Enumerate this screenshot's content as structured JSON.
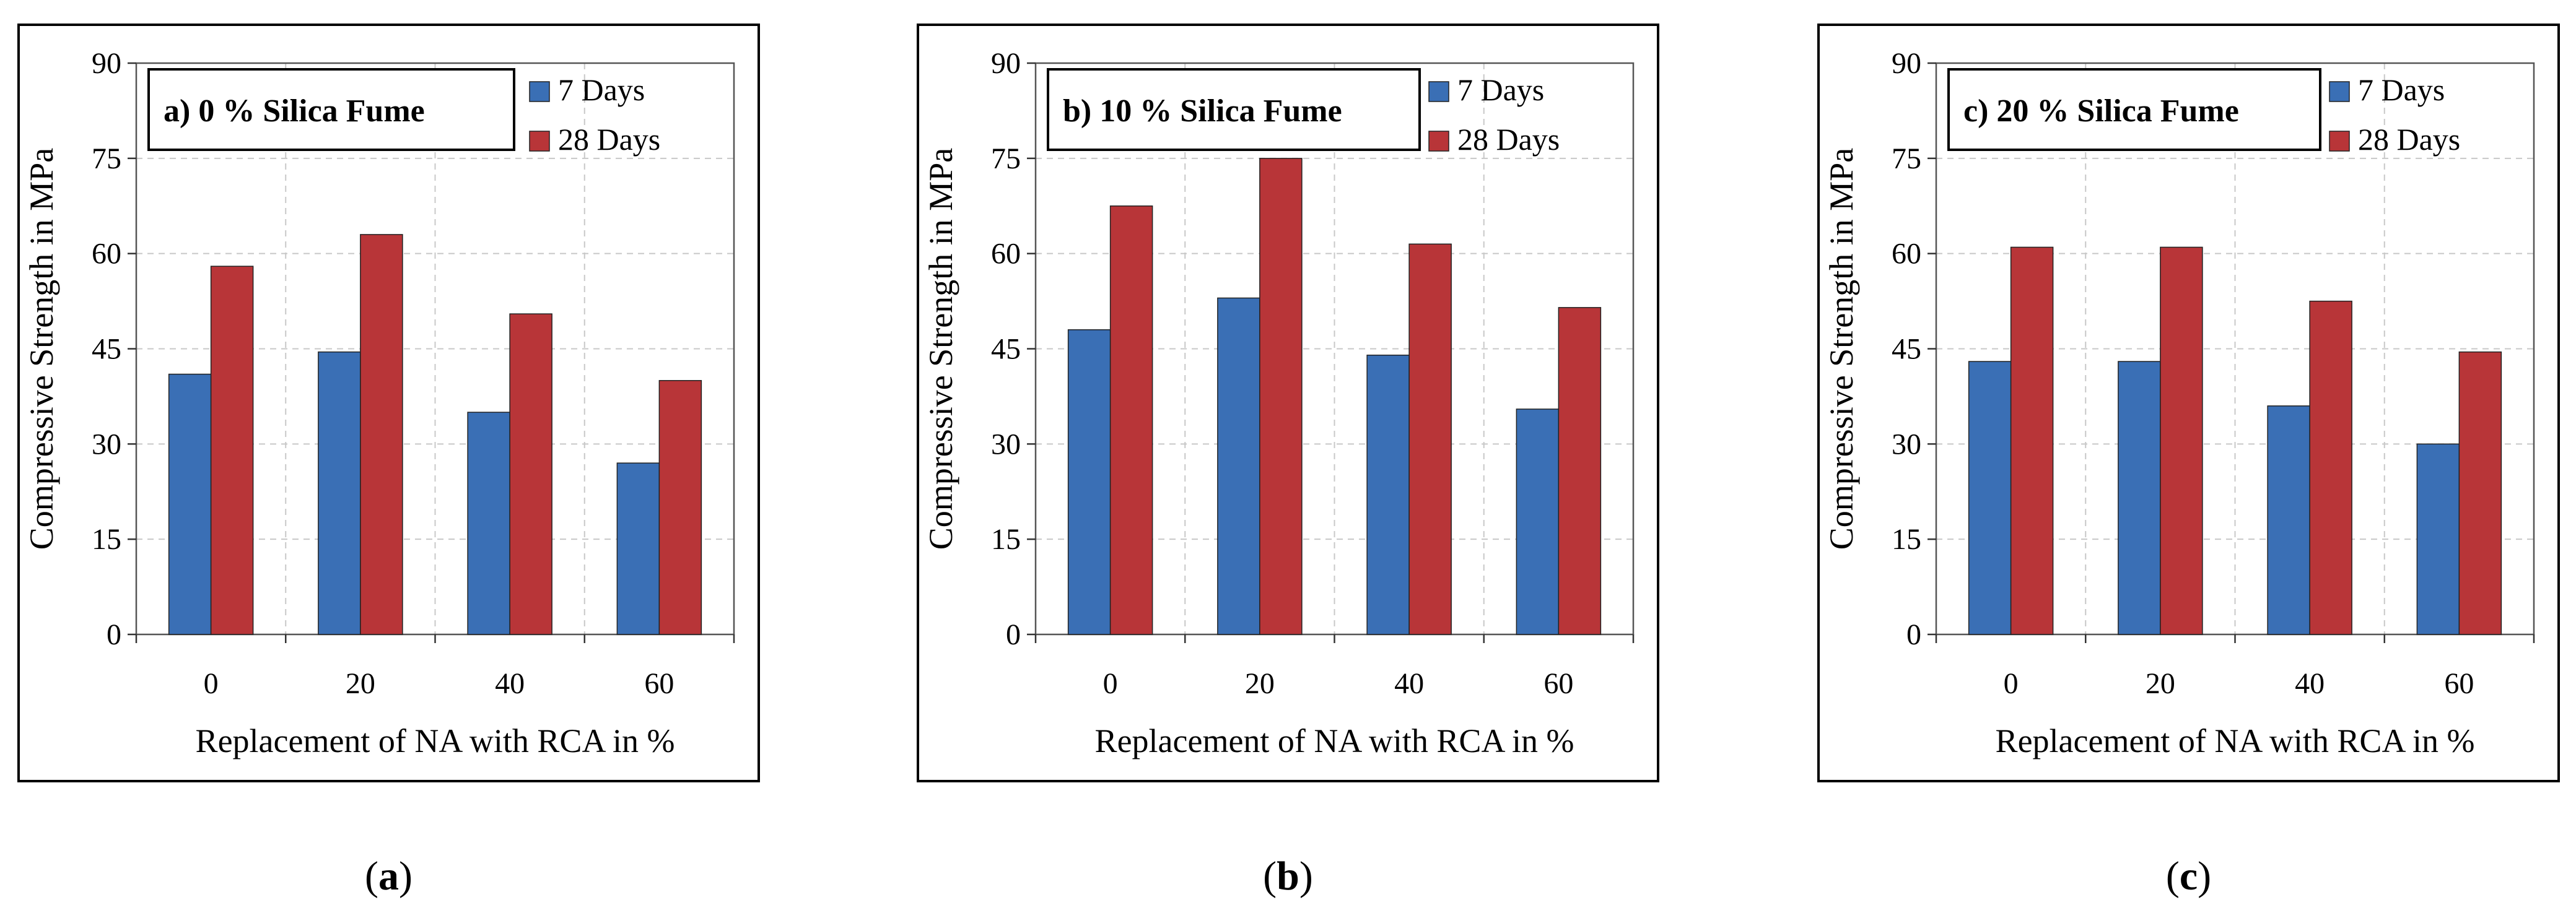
{
  "colors": {
    "days7": "#3a6fb5",
    "days28": "#b83538",
    "grid": "#c8c8c8",
    "frame": "#000000"
  },
  "chart_data": [
    {
      "type": "bar",
      "title": "a) 0 % Silica Fume",
      "caption": "a",
      "categories": [
        "0",
        "20",
        "40",
        "60"
      ],
      "series": [
        {
          "name": "7 Days",
          "values": [
            41,
            44.5,
            35,
            27
          ]
        },
        {
          "name": "28 Days",
          "values": [
            58,
            63,
            50.5,
            40
          ]
        }
      ],
      "xlabel": "Replacement of NA with RCA in %",
      "ylabel": "Compressive Strength in MPa",
      "yticks": [
        "0",
        "15",
        "30",
        "45",
        "60",
        "75",
        "90"
      ],
      "ylim": [
        0,
        90
      ],
      "grid": true,
      "legend": "top-right"
    },
    {
      "type": "bar",
      "title": "b) 10 % Silica Fume",
      "caption": "b",
      "categories": [
        "0",
        "20",
        "40",
        "60"
      ],
      "series": [
        {
          "name": "7 Days",
          "values": [
            48,
            53,
            44,
            35.5
          ]
        },
        {
          "name": "28 Days",
          "values": [
            67.5,
            75,
            61.5,
            51.5
          ]
        }
      ],
      "xlabel": "Replacement of NA with RCA in %",
      "ylabel": "Compressive Strength in MPa",
      "yticks": [
        "0",
        "15",
        "30",
        "45",
        "60",
        "75",
        "90"
      ],
      "ylim": [
        0,
        90
      ],
      "grid": true,
      "legend": "top-right"
    },
    {
      "type": "bar",
      "title": "c) 20 % Silica Fume",
      "caption": "c",
      "categories": [
        "0",
        "20",
        "40",
        "60"
      ],
      "series": [
        {
          "name": "7 Days",
          "values": [
            43,
            43,
            36,
            30
          ]
        },
        {
          "name": "28 Days",
          "values": [
            61,
            61,
            52.5,
            44.5
          ]
        }
      ],
      "xlabel": "Replacement of NA with RCA in %",
      "ylabel": "Compressive Strength in MPa",
      "yticks": [
        "0",
        "15",
        "30",
        "45",
        "60",
        "75",
        "90"
      ],
      "ylim": [
        0,
        90
      ],
      "grid": true,
      "legend": "top-right"
    }
  ]
}
